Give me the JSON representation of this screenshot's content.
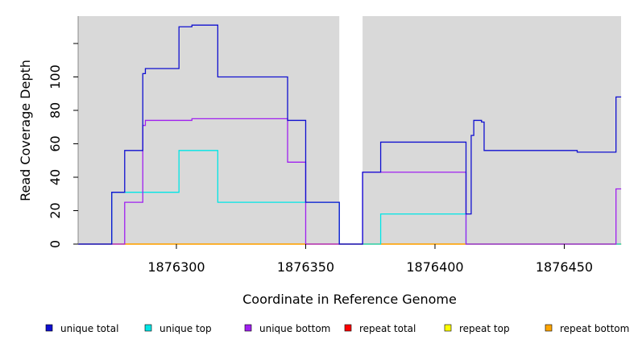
{
  "chart_data": {
    "type": "line",
    "step": true,
    "xlabel": "Coordinate in Reference Genome",
    "ylabel": "Read Coverage Depth",
    "xlim": [
      1876262,
      1876472
    ],
    "ylim": [
      0,
      135
    ],
    "x_ticks": [
      1876300,
      1876350,
      1876400,
      1876450
    ],
    "y_ticks": [
      0,
      20,
      40,
      60,
      80,
      100
    ],
    "grid": false,
    "background_color": "#d9d9d9",
    "gap_region": [
      1876363,
      1876372
    ],
    "legend_position": "bottom",
    "series": [
      {
        "name": "unique total",
        "color": "#1010d0",
        "points": [
          [
            1876262,
            0
          ],
          [
            1876275,
            0
          ],
          [
            1876275,
            31
          ],
          [
            1876280,
            31
          ],
          [
            1876280,
            56
          ],
          [
            1876287,
            56
          ],
          [
            1876287,
            102
          ],
          [
            1876288,
            102
          ],
          [
            1876288,
            105
          ],
          [
            1876301,
            105
          ],
          [
            1876301,
            130
          ],
          [
            1876306,
            130
          ],
          [
            1876306,
            131
          ],
          [
            1876316,
            131
          ],
          [
            1876316,
            100
          ],
          [
            1876343,
            100
          ],
          [
            1876343,
            74
          ],
          [
            1876350,
            74
          ],
          [
            1876350,
            25
          ],
          [
            1876363,
            25
          ],
          [
            1876363,
            0
          ],
          [
            1876372,
            0
          ],
          [
            1876372,
            43
          ],
          [
            1876379,
            43
          ],
          [
            1876379,
            61
          ],
          [
            1876412,
            61
          ],
          [
            1876412,
            18
          ],
          [
            1876414,
            18
          ],
          [
            1876414,
            65
          ],
          [
            1876415,
            65
          ],
          [
            1876415,
            74
          ],
          [
            1876418,
            74
          ],
          [
            1876418,
            73
          ],
          [
            1876419,
            73
          ],
          [
            1876419,
            56
          ],
          [
            1876455,
            56
          ],
          [
            1876455,
            55
          ],
          [
            1876470,
            55
          ],
          [
            1876470,
            88
          ],
          [
            1876472,
            88
          ]
        ]
      },
      {
        "name": "unique top",
        "color": "#00e5e5",
        "points": [
          [
            1876262,
            0
          ],
          [
            1876275,
            0
          ],
          [
            1876275,
            31
          ],
          [
            1876301,
            31
          ],
          [
            1876301,
            56
          ],
          [
            1876316,
            56
          ],
          [
            1876316,
            25
          ],
          [
            1876363,
            25
          ],
          [
            1876363,
            0
          ],
          [
            1876379,
            0
          ],
          [
            1876379,
            18
          ],
          [
            1876412,
            18
          ],
          [
            1876412,
            0
          ],
          [
            1876472,
            0
          ]
        ]
      },
      {
        "name": "unique bottom",
        "color": "#a020f0",
        "points": [
          [
            1876262,
            0
          ],
          [
            1876280,
            0
          ],
          [
            1876280,
            25
          ],
          [
            1876287,
            25
          ],
          [
            1876287,
            71
          ],
          [
            1876288,
            71
          ],
          [
            1876288,
            74
          ],
          [
            1876306,
            74
          ],
          [
            1876306,
            75
          ],
          [
            1876343,
            75
          ],
          [
            1876343,
            49
          ],
          [
            1876350,
            49
          ],
          [
            1876350,
            0
          ],
          [
            1876372,
            0
          ],
          [
            1876372,
            43
          ],
          [
            1876412,
            43
          ],
          [
            1876412,
            0
          ],
          [
            1876470,
            0
          ],
          [
            1876470,
            33
          ],
          [
            1876472,
            33
          ]
        ]
      },
      {
        "name": "repeat total",
        "color": "#ff0000",
        "points": [
          [
            1876262,
            0
          ],
          [
            1876363,
            0
          ],
          [
            1876372,
            0
          ],
          [
            1876472,
            0
          ]
        ]
      },
      {
        "name": "repeat top",
        "color": "#ffff00",
        "points": [
          [
            1876262,
            0
          ],
          [
            1876363,
            0
          ],
          [
            1876372,
            0
          ],
          [
            1876472,
            0
          ]
        ]
      },
      {
        "name": "repeat bottom",
        "color": "#ffa500",
        "points": [
          [
            1876262,
            0
          ],
          [
            1876363,
            0
          ],
          [
            1876372,
            0
          ],
          [
            1876472,
            0
          ]
        ]
      }
    ]
  }
}
